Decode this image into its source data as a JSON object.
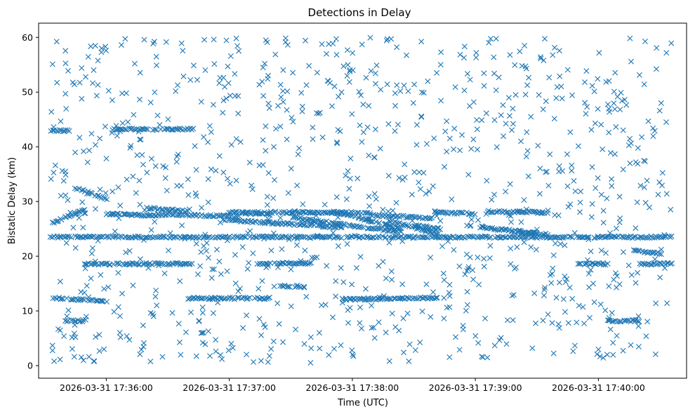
{
  "chart_data": {
    "type": "scatter",
    "title": "Detections in Delay",
    "xlabel": "Time (UTC)",
    "ylabel": "Bistatic Delay (km)",
    "marker": "x",
    "color": "#1f77b4",
    "grid": false,
    "x_range_start": "2026-03-31 17:35:27",
    "x_range_end": "2026-03-31 17:40:43",
    "x_ticks": [
      "2026-03-31 17:36:00",
      "2026-03-31 17:37:00",
      "2026-03-31 17:38:00",
      "2026-03-31 17:39:00",
      "2026-03-31 17:40:00"
    ],
    "ylim": [
      -2.3,
      62.6
    ],
    "y_ticks": [
      0,
      10,
      20,
      30,
      40,
      50,
      60
    ],
    "point_count_approx": 2400,
    "time_span": [
      "2026-03-31 17:35:33",
      "2026-03-31 17:40:36"
    ],
    "tracks": [
      {
        "from": "2026-03-31 17:35:33",
        "to": "2026-03-31 17:40:36",
        "delay_start": 23.5,
        "delay_end": 23.5
      },
      {
        "from": "2026-03-31 17:35:33",
        "to": "2026-03-31 17:36:00",
        "delay_start": 12.4,
        "delay_end": 11.8
      },
      {
        "from": "2026-03-31 17:35:33",
        "to": "2026-03-31 17:35:50",
        "delay_start": 26.0,
        "delay_end": 28.6
      },
      {
        "from": "2026-03-31 17:35:33",
        "to": "2026-03-31 17:35:42",
        "delay_start": 43.0,
        "delay_end": 43.0
      },
      {
        "from": "2026-03-31 17:35:45",
        "to": "2026-03-31 17:36:00",
        "delay_start": 32.5,
        "delay_end": 30.5
      },
      {
        "from": "2026-03-31 17:35:50",
        "to": "2026-03-31 17:36:42",
        "delay_start": 18.6,
        "delay_end": 18.6
      },
      {
        "from": "2026-03-31 17:36:03",
        "to": "2026-03-31 17:36:20",
        "delay_start": 43.2,
        "delay_end": 43.2
      },
      {
        "from": "2026-03-31 17:36:23",
        "to": "2026-03-31 17:36:43",
        "delay_start": 43.2,
        "delay_end": 43.2
      },
      {
        "from": "2026-03-31 17:36:00",
        "to": "2026-03-31 17:36:27",
        "delay_start": 27.7,
        "delay_end": 27.4
      },
      {
        "from": "2026-03-31 17:36:27",
        "to": "2026-03-31 17:37:05",
        "delay_start": 27.6,
        "delay_end": 27.3
      },
      {
        "from": "2026-03-31 17:36:20",
        "to": "2026-03-31 17:36:40",
        "delay_start": 28.8,
        "delay_end": 28.2
      },
      {
        "from": "2026-03-31 17:36:40",
        "to": "2026-03-31 17:37:20",
        "delay_start": 12.3,
        "delay_end": 12.3
      },
      {
        "from": "2026-03-31 17:37:13",
        "to": "2026-03-31 17:37:40",
        "delay_start": 18.7,
        "delay_end": 18.7
      },
      {
        "from": "2026-03-31 17:37:06",
        "to": "2026-03-31 17:37:20",
        "delay_start": 27.9,
        "delay_end": 27.6
      },
      {
        "from": "2026-03-31 17:36:58",
        "to": "2026-03-31 17:37:55",
        "delay_start": 26.6,
        "delay_end": 25.3
      },
      {
        "from": "2026-03-31 17:37:00",
        "to": "2026-03-31 17:38:09",
        "delay_start": 28.0,
        "delay_end": 28.0
      },
      {
        "from": "2026-03-31 17:38:09",
        "to": "2026-03-31 17:38:39",
        "delay_start": 27.5,
        "delay_end": 27.0
      },
      {
        "from": "2026-03-31 17:37:30",
        "to": "2026-03-31 17:38:24",
        "delay_start": 27.1,
        "delay_end": 24.4
      },
      {
        "from": "2026-03-31 17:37:50",
        "to": "2026-03-31 17:38:24",
        "delay_start": 28.2,
        "delay_end": 25.0
      },
      {
        "from": "2026-03-31 17:37:55",
        "to": "2026-03-31 17:38:45",
        "delay_start": 12.1,
        "delay_end": 12.4
      },
      {
        "from": "2026-03-31 17:38:18",
        "to": "2026-03-31 17:38:42",
        "delay_start": 26.5,
        "delay_end": 24.0
      },
      {
        "from": "2026-03-31 17:38:40",
        "to": "2026-03-31 17:39:00",
        "delay_start": 28.0,
        "delay_end": 27.8
      },
      {
        "from": "2026-03-31 17:38:55",
        "to": "2026-03-31 17:39:30",
        "delay_start": 25.6,
        "delay_end": 24.2
      },
      {
        "from": "2026-03-31 17:39:05",
        "to": "2026-03-31 17:39:35",
        "delay_start": 28.2,
        "delay_end": 28.0
      },
      {
        "from": "2026-03-31 17:38:30",
        "to": "2026-03-31 17:38:43",
        "delay_start": 25.6,
        "delay_end": 25.0
      },
      {
        "from": "2026-03-31 17:39:50",
        "to": "2026-03-31 17:40:05",
        "delay_start": 18.6,
        "delay_end": 18.6
      },
      {
        "from": "2026-03-31 17:40:05",
        "to": "2026-03-31 17:40:20",
        "delay_start": 8.2,
        "delay_end": 8.2
      },
      {
        "from": "2026-03-31 17:40:20",
        "to": "2026-03-31 17:40:36",
        "delay_start": 18.6,
        "delay_end": 18.6
      },
      {
        "from": "2026-03-31 17:40:17",
        "to": "2026-03-31 17:40:30",
        "delay_start": 21.0,
        "delay_end": 20.5
      },
      {
        "from": "2026-03-31 17:39:20",
        "to": "2026-03-31 17:39:35",
        "delay_start": 24.5,
        "delay_end": 24.0
      },
      {
        "from": "2026-03-31 17:37:25",
        "to": "2026-03-31 17:37:35",
        "delay_start": 14.5,
        "delay_end": 14.5
      },
      {
        "from": "2026-03-31 17:35:40",
        "to": "2026-03-31 17:35:50",
        "delay_start": 8.2,
        "delay_end": 8.2
      }
    ],
    "clutter": {
      "delay_range": [
        0.5,
        60
      ],
      "count_approx": 1000
    }
  }
}
